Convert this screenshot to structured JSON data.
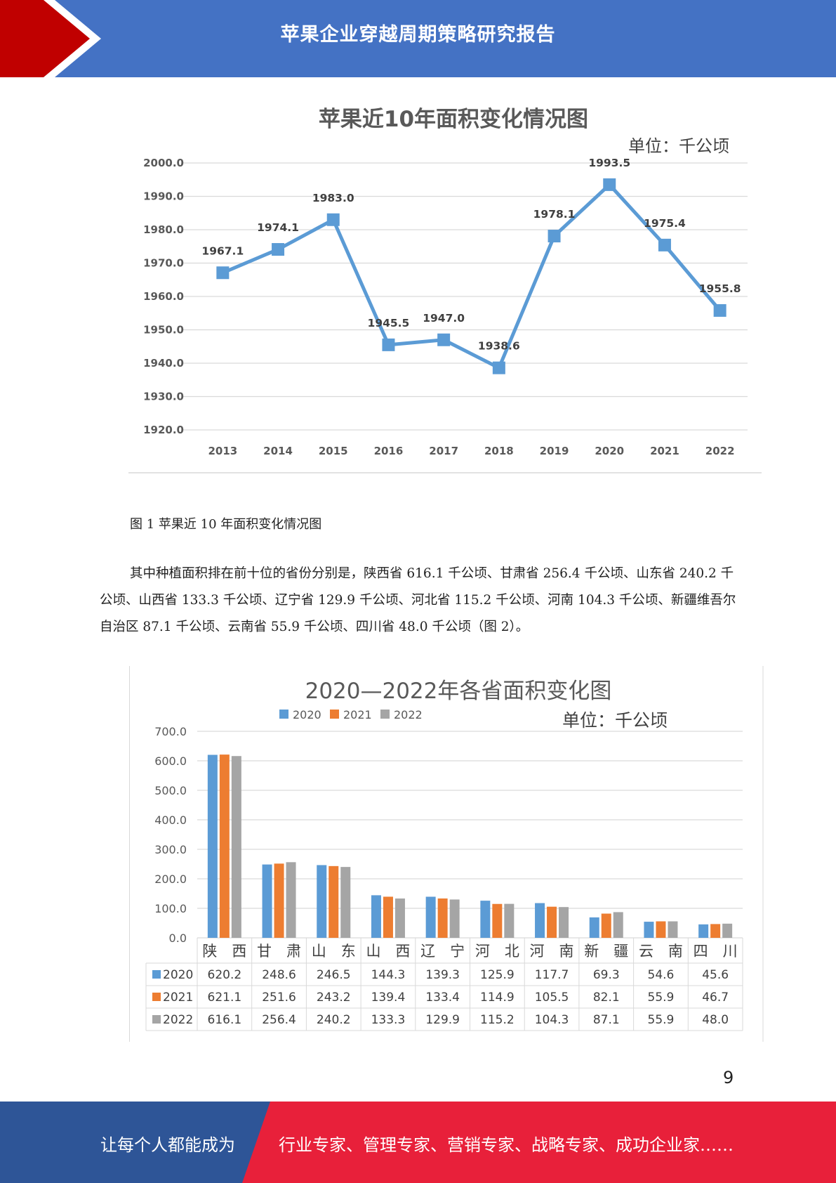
{
  "header": {
    "title": "苹果企业穿越周期策略研究报告",
    "accent_red": "#c00000",
    "accent_blue": "#4472c4"
  },
  "chart1_data": {
    "type": "line",
    "title": "苹果近10年面积变化情况图",
    "unit": "单位：千公顷",
    "categories": [
      "2013",
      "2014",
      "2015",
      "2016",
      "2017",
      "2018",
      "2019",
      "2020",
      "2021",
      "2022"
    ],
    "values": [
      1967.1,
      1974.1,
      1983.0,
      1945.5,
      1947.0,
      1938.6,
      1978.1,
      1993.5,
      1975.4,
      1955.8
    ],
    "data_labels": [
      "1967.1",
      "1974.1",
      "1983.0",
      "1945.5",
      "1947.0",
      "1938.6",
      "1978.1",
      "1993.5",
      "1975.4",
      "1955.8"
    ],
    "yticks": [
      "2000.0",
      "1990.0",
      "1980.0",
      "1970.0",
      "1960.0",
      "1950.0",
      "1940.0",
      "1930.0",
      "1920.0"
    ],
    "ylim": [
      1920,
      2000
    ],
    "color": "#5b9bd5",
    "grid": true
  },
  "caption": "图 1  苹果近 10 年面积变化情况图",
  "paragraph": "其中种植面积排在前十位的省份分别是，陕西省 616.1 千公顷、甘肃省 256.4 千公顷、山东省 240.2 千公顷、山西省 133.3 千公顷、辽宁省 129.9 千公顷、河北省 115.2 千公顷、河南 104.3 千公顷、新疆维吾尔自治区 87.1 千公顷、云南省 55.9 千公顷、四川省 48.0 千公顷（图 2）。",
  "chart_data": {
    "type": "bar",
    "title": "2020—2022年各省面积变化图",
    "unit": "单位：千公顷",
    "categories": [
      "陕　西",
      "甘　肃",
      "山　东",
      "山　西",
      "辽　宁",
      "河　北",
      "河　南",
      "新　疆",
      "云　南",
      "四　川"
    ],
    "series": [
      {
        "name": "2020",
        "color": "#5b9bd5",
        "values": [
          620.2,
          248.6,
          246.5,
          144.3,
          139.3,
          125.9,
          117.7,
          69.3,
          54.6,
          45.6
        ],
        "labels": [
          "620.2",
          "248.6",
          "246.5",
          "144.3",
          "139.3",
          "125.9",
          "117.7",
          "69.3",
          "54.6",
          "45.6"
        ]
      },
      {
        "name": "2021",
        "color": "#ed7d31",
        "values": [
          621.1,
          251.6,
          243.2,
          139.4,
          133.4,
          114.9,
          105.5,
          82.1,
          55.9,
          46.7
        ],
        "labels": [
          "621.1",
          "251.6",
          "243.2",
          "139.4",
          "133.4",
          "114.9",
          "105.5",
          "82.1",
          "55.9",
          "46.7"
        ]
      },
      {
        "name": "2022",
        "color": "#a5a5a5",
        "values": [
          616.1,
          256.4,
          240.2,
          133.3,
          129.9,
          115.2,
          104.3,
          87.1,
          55.9,
          48.0
        ],
        "labels": [
          "616.1",
          "256.4",
          "240.2",
          "133.3",
          "129.9",
          "115.2",
          "104.3",
          "87.1",
          "55.9",
          "48.0"
        ]
      }
    ],
    "yticks": [
      "700.0",
      "600.0",
      "500.0",
      "400.0",
      "300.0",
      "200.0",
      "100.0",
      "0.0"
    ],
    "ylim": [
      0,
      700
    ],
    "legend": "top",
    "grid": true
  },
  "page_number": "9",
  "footer": {
    "left_text": "让每个人都能成为",
    "right_text": "行业专家、管理专家、营销专家、战略专家、成功企业家……",
    "left_color": "#2e5597",
    "right_color": "#e8203a"
  }
}
